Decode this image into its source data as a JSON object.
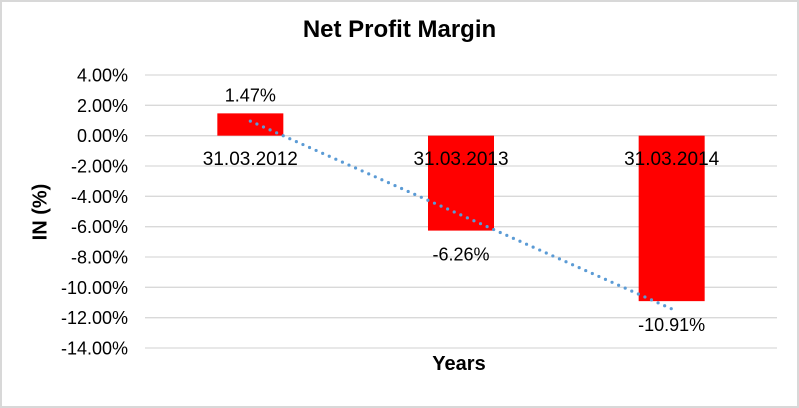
{
  "chart_data": {
    "type": "bar",
    "title": "Net Profit Margin",
    "xlabel": "Years",
    "ylabel": "IN (%)",
    "categories": [
      "31.03.2012",
      "31.03.2013",
      "31.03.2014"
    ],
    "values": [
      1.47,
      -6.26,
      -10.91
    ],
    "data_labels": [
      "1.47%",
      "-6.26%",
      "-10.91%"
    ],
    "y_tick_values": [
      4,
      2,
      0,
      -2,
      -4,
      -6,
      -8,
      -10,
      -12,
      -14
    ],
    "y_tick_labels": [
      "4.00%",
      "2.00%",
      "0.00%",
      "-2.00%",
      "-4.00%",
      "-6.00%",
      "-8.00%",
      "-10.00%",
      "-12.00%",
      "-14.00%"
    ],
    "ylim": [
      -14,
      4
    ],
    "grid": true,
    "legend": "none",
    "colors": {
      "bar": "#FF0000",
      "trendline": "#5B9BD5",
      "gridline": "#D9D9D9",
      "text": "#000000",
      "border": "#D8D8D8",
      "background": "#FFFFFF"
    },
    "trendline": {
      "type": "linear",
      "style": "dotted",
      "start_value": 0.96,
      "end_value": -11.42
    }
  }
}
